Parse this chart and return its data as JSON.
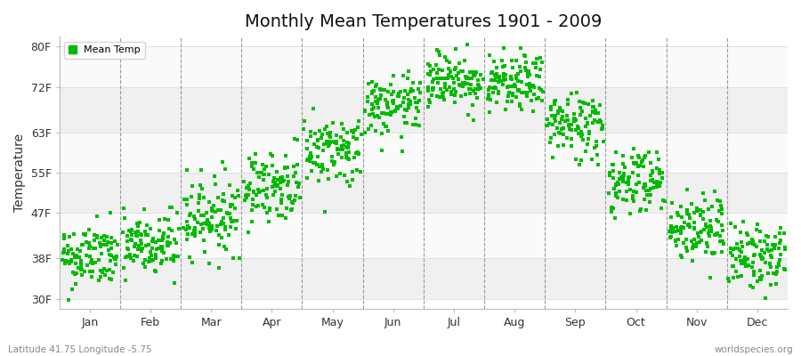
{
  "title": "Monthly Mean Temperatures 1901 - 2009",
  "ylabel": "Temperature",
  "xlabel_labels": [
    "Jan",
    "Feb",
    "Mar",
    "Apr",
    "May",
    "Jun",
    "Jul",
    "Aug",
    "Sep",
    "Oct",
    "Nov",
    "Dec"
  ],
  "ytick_labels": [
    "30F",
    "38F",
    "47F",
    "55F",
    "63F",
    "72F",
    "80F"
  ],
  "ytick_values": [
    30,
    38,
    47,
    55,
    63,
    72,
    80
  ],
  "ylim": [
    28,
    82
  ],
  "legend_label": "Mean Temp",
  "dot_color": "#00bb00",
  "bg_color": "#ffffff",
  "footer_left": "Latitude 41.75 Longitude -5.75",
  "footer_right": "worldspecies.org",
  "n_years": 109,
  "monthly_means_F": [
    38.3,
    40.5,
    46.5,
    52.5,
    59.5,
    68.0,
    73.5,
    72.5,
    64.5,
    53.5,
    44.0,
    38.5
  ],
  "monthly_stds_F": [
    3.2,
    3.5,
    3.8,
    3.5,
    3.5,
    3.0,
    2.8,
    2.8,
    3.5,
    3.5,
    3.5,
    3.2
  ],
  "band_colors_h": [
    "#f0f0f0",
    "#fafafa"
  ],
  "vline_color": "#999999",
  "hline_color": "#dddddd"
}
